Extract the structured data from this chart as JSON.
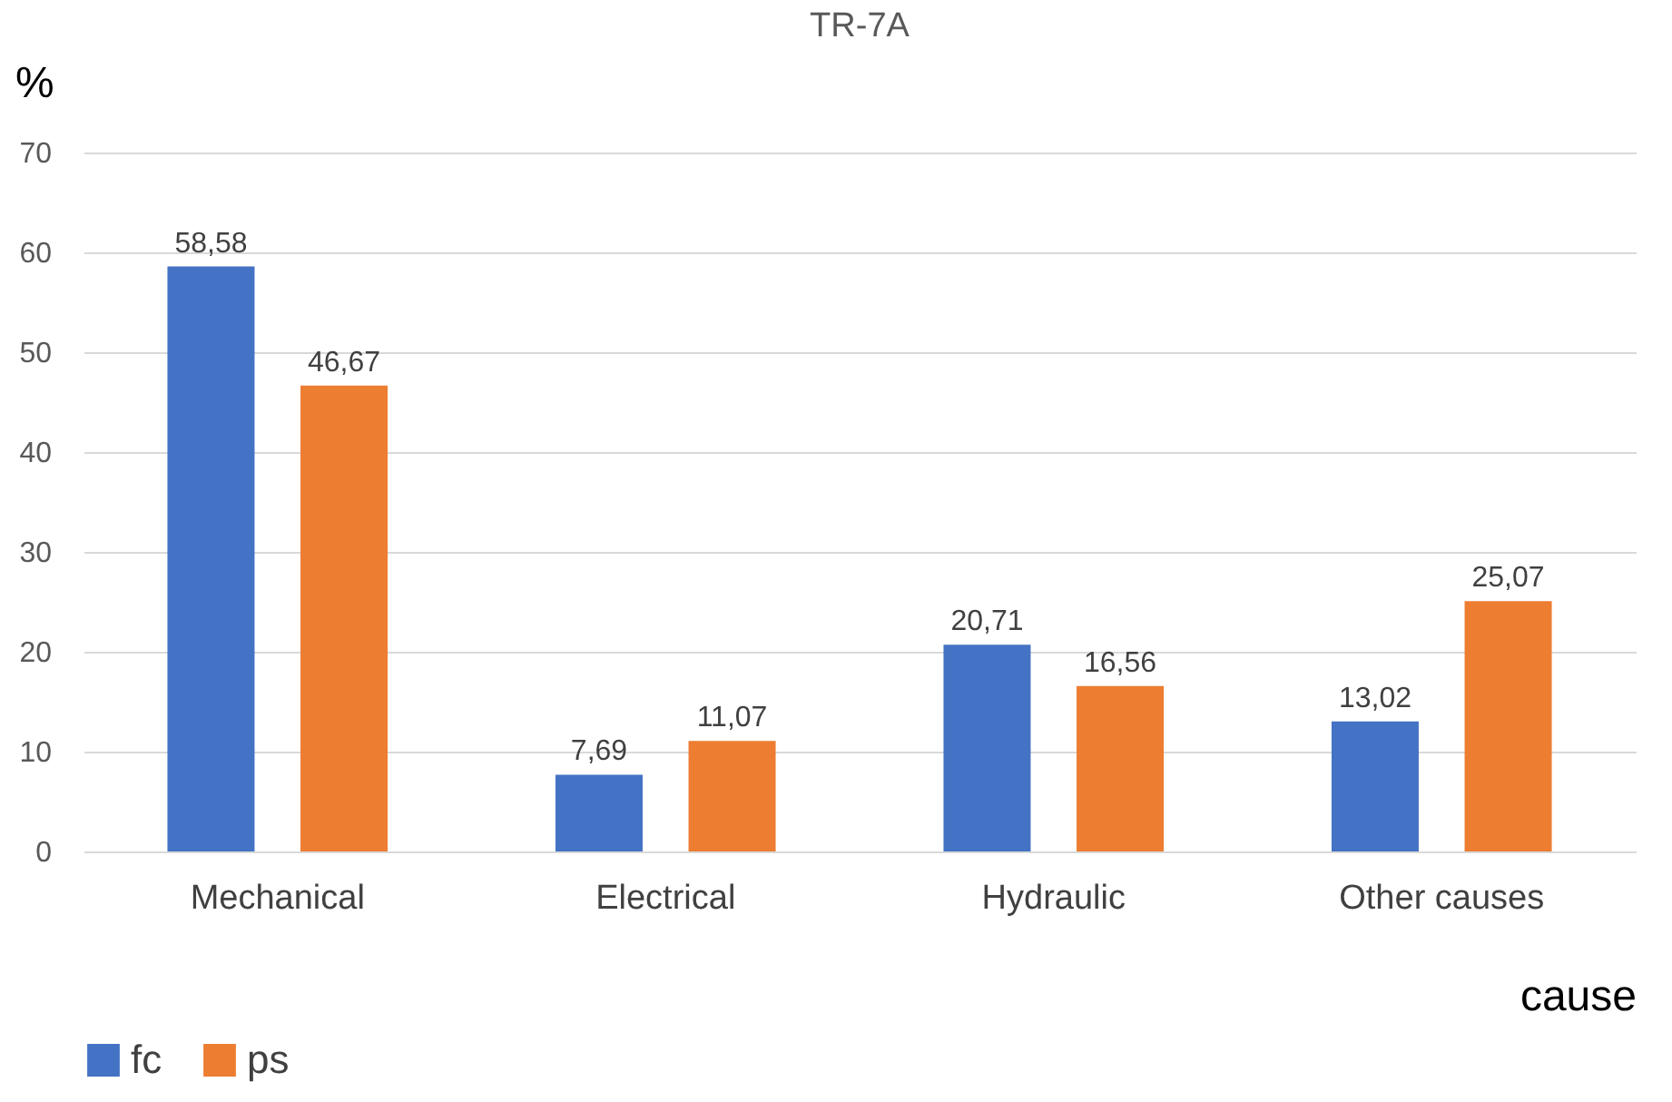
{
  "chart_data": {
    "type": "bar",
    "title": "TR-7A",
    "ylabel": "%",
    "xlabel": "cause",
    "categories": [
      "Mechanical",
      "Electrical",
      "Hydraulic",
      "Other causes"
    ],
    "series": [
      {
        "name": "fc",
        "color": "#4472c4",
        "values": [
          58.58,
          7.69,
          20.71,
          13.02
        ],
        "value_labels": [
          "58,58",
          "7,69",
          "20,71",
          "13,02"
        ]
      },
      {
        "name": "ps",
        "color": "#ed7d31",
        "values": [
          46.67,
          11.07,
          16.56,
          25.07
        ],
        "value_labels": [
          "46,67",
          "11,07",
          "16,56",
          "25,07"
        ]
      }
    ],
    "ylim": [
      0,
      70
    ],
    "yticks": [
      0,
      10,
      20,
      30,
      40,
      50,
      60,
      70
    ],
    "grid": "y",
    "legend": "bottom"
  }
}
